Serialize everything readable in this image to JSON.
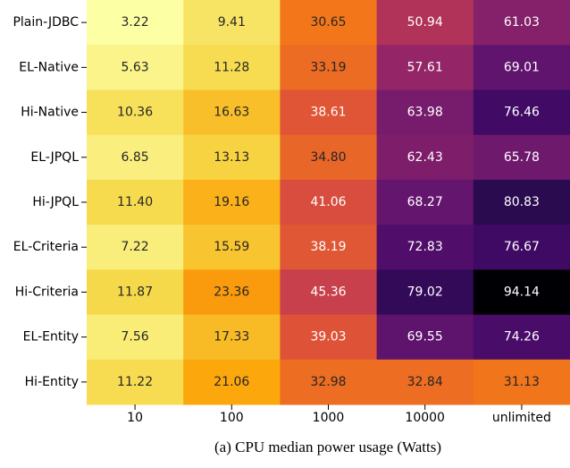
{
  "chart_data": {
    "type": "heatmap",
    "caption": "(a) CPU median power usage (Watts)",
    "colormap": "inferno_r",
    "categories": [
      "10",
      "100",
      "1000",
      "10000",
      "unlimited"
    ],
    "y_categories": [
      "Plain-JDBC",
      "EL-Native",
      "Hi-Native",
      "EL-JPQL",
      "Hi-JPQL",
      "EL-Criteria",
      "Hi-Criteria",
      "EL-Entity",
      "Hi-Entity"
    ],
    "values": [
      [
        3.22,
        9.41,
        30.65,
        50.94,
        61.03
      ],
      [
        5.63,
        11.28,
        33.19,
        57.61,
        69.01
      ],
      [
        10.36,
        16.63,
        38.61,
        63.98,
        76.46
      ],
      [
        6.85,
        13.13,
        34.8,
        62.43,
        65.78
      ],
      [
        11.4,
        19.16,
        41.06,
        68.27,
        80.83
      ],
      [
        7.22,
        15.59,
        38.19,
        72.83,
        76.67
      ],
      [
        11.87,
        23.36,
        45.36,
        79.02,
        94.14
      ],
      [
        7.56,
        17.33,
        39.03,
        69.55,
        74.26
      ],
      [
        11.22,
        21.06,
        32.98,
        32.84,
        31.13
      ]
    ],
    "value_labels": [
      [
        "3.22",
        "9.41",
        "30.65",
        "50.94",
        "61.03"
      ],
      [
        "5.63",
        "11.28",
        "33.19",
        "57.61",
        "69.01"
      ],
      [
        "10.36",
        "16.63",
        "38.61",
        "63.98",
        "76.46"
      ],
      [
        "6.85",
        "13.13",
        "34.80",
        "62.43",
        "65.78"
      ],
      [
        "11.40",
        "19.16",
        "41.06",
        "68.27",
        "80.83"
      ],
      [
        "7.22",
        "15.59",
        "38.19",
        "72.83",
        "76.67"
      ],
      [
        "11.87",
        "23.36",
        "45.36",
        "79.02",
        "94.14"
      ],
      [
        "7.56",
        "17.33",
        "39.03",
        "69.55",
        "74.26"
      ],
      [
        "11.22",
        "21.06",
        "32.98",
        "32.84",
        "31.13"
      ]
    ]
  }
}
